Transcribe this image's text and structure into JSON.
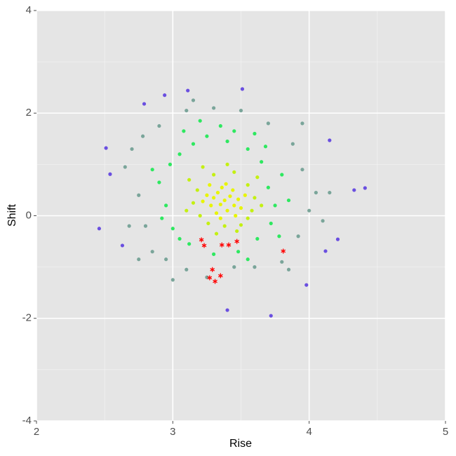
{
  "chart_data": {
    "type": "scatter",
    "x_label": "Rise",
    "y_label": "Shift",
    "xlim": [
      2,
      5
    ],
    "xticks": [
      2,
      3,
      4,
      5
    ],
    "x_minor_ticks": [
      2.5,
      3.5,
      4.5
    ],
    "ylim": [
      -4,
      4
    ],
    "yticks": [
      -4,
      -2,
      0,
      2,
      4
    ],
    "y_minor_ticks": [
      -3,
      -1,
      1,
      3
    ],
    "grid": true,
    "series": [
      {
        "color": "#e8f500",
        "marker": "circle",
        "x": [
          3.38,
          3.35,
          3.42,
          3.3,
          3.45,
          3.33,
          3.4,
          3.28,
          3.48,
          3.36,
          3.25,
          3.44,
          3.32,
          3.5,
          3.39,
          3.27,
          3.46,
          3.22,
          3.53,
          3.35
        ],
        "values": [
          0.3,
          0.22,
          0.38,
          0.35,
          0.2,
          0.45,
          0.1,
          0.2,
          0.32,
          0.55,
          0.4,
          0.5,
          0.05,
          0.15,
          0.62,
          0.6,
          0.0,
          0.28,
          0.4,
          -0.05
        ]
      },
      {
        "color": "#c4f012",
        "marker": "circle",
        "x": [
          3.18,
          3.55,
          3.2,
          3.58,
          3.3,
          3.45,
          3.15,
          3.6,
          3.38,
          3.26,
          3.5,
          3.12,
          3.62,
          3.4,
          3.22,
          3.55,
          3.1,
          3.65,
          3.32,
          3.47
        ],
        "values": [
          0.5,
          0.6,
          0.0,
          0.1,
          0.8,
          0.85,
          0.25,
          0.35,
          -0.2,
          -0.15,
          -0.18,
          0.7,
          0.75,
          1.0,
          0.95,
          -0.05,
          0.1,
          0.2,
          -0.35,
          -0.3
        ]
      },
      {
        "color": "#2ee860",
        "marker": "circle",
        "x": [
          3.05,
          3.15,
          3.25,
          3.4,
          3.55,
          3.65,
          3.7,
          3.75,
          3.72,
          3.62,
          3.48,
          3.3,
          3.12,
          3.0,
          2.95,
          2.9,
          2.98,
          3.08,
          3.35,
          3.6,
          3.8,
          3.85,
          3.78,
          3.55,
          2.85,
          2.92,
          3.2,
          3.45,
          3.05,
          3.68
        ],
        "values": [
          1.2,
          1.4,
          1.55,
          1.45,
          1.3,
          1.05,
          0.55,
          0.2,
          -0.15,
          -0.45,
          -0.7,
          -0.75,
          -0.55,
          -0.25,
          0.2,
          0.65,
          1.0,
          1.65,
          1.75,
          1.6,
          0.8,
          0.3,
          -0.4,
          -0.85,
          0.9,
          -0.05,
          1.85,
          1.65,
          -0.45,
          1.35
        ]
      },
      {
        "color": "#7aa59a",
        "marker": "circle",
        "x": [
          2.7,
          2.75,
          2.8,
          2.85,
          2.95,
          3.1,
          3.25,
          3.45,
          3.6,
          3.8,
          3.92,
          4.0,
          4.05,
          3.95,
          3.88,
          3.7,
          3.5,
          3.3,
          3.1,
          2.9,
          2.78,
          2.65,
          2.68,
          2.75,
          3.0,
          3.85,
          4.1,
          4.15,
          3.95,
          3.15
        ],
        "values": [
          1.3,
          0.4,
          -0.2,
          -0.7,
          -0.85,
          -1.05,
          -1.2,
          -1.0,
          -1.0,
          -0.9,
          -0.4,
          0.1,
          0.45,
          0.9,
          1.4,
          1.8,
          2.05,
          2.1,
          2.05,
          1.75,
          1.55,
          0.95,
          -0.2,
          -0.85,
          -1.25,
          -1.05,
          -0.1,
          0.45,
          1.8,
          2.25
        ]
      },
      {
        "color": "#6a4fe0",
        "marker": "circle",
        "x": [
          2.46,
          2.51,
          2.94,
          3.11,
          3.51,
          3.72,
          3.4,
          4.41,
          4.33,
          4.15,
          2.54,
          2.79,
          3.98,
          4.12,
          4.21,
          2.63
        ],
        "values": [
          -0.25,
          1.32,
          2.35,
          2.44,
          2.47,
          -1.95,
          -1.84,
          0.54,
          0.5,
          1.47,
          0.81,
          2.18,
          -1.35,
          -0.69,
          -0.46,
          -0.58
        ]
      },
      {
        "color": "#ff0000",
        "marker": "asterisk",
        "x": [
          3.21,
          3.23,
          3.36,
          3.41,
          3.47,
          3.81,
          3.29,
          3.27,
          3.31,
          3.35
        ],
        "values": [
          -0.47,
          -0.58,
          -0.57,
          -0.57,
          -0.5,
          -0.69,
          -1.05,
          -1.21,
          -1.28,
          -1.17
        ]
      }
    ]
  }
}
